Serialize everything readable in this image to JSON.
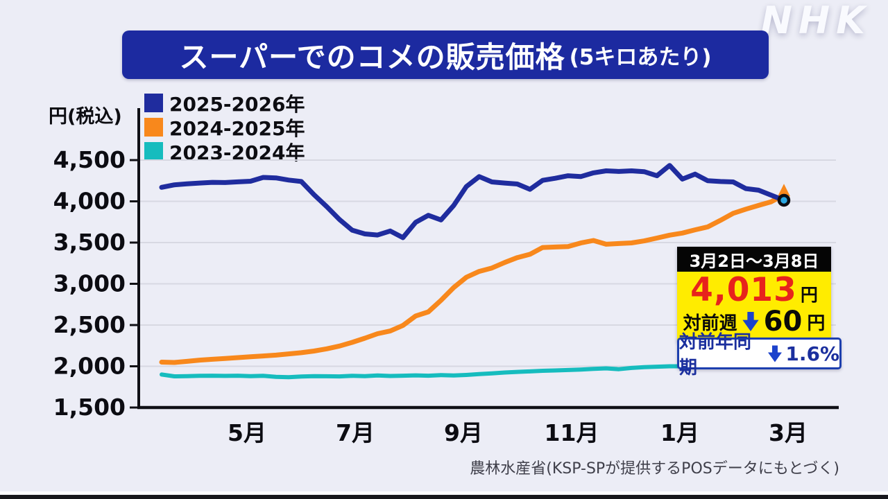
{
  "brand": {
    "logo": "NHK"
  },
  "title": {
    "main": "スーパーでのコメの販売価格",
    "unit": "(5キロあたり)"
  },
  "y_axis_unit": "円(税込)",
  "colors": {
    "title_bg": "#1c2aa0",
    "navy": "#1f2c9e",
    "orange": "#f8881c",
    "cyan": "#16bcbe",
    "price_red": "#e7231c",
    "callout_yellow": "#ffec00",
    "callout_header_bg": "#050505",
    "arrow_blue": "#1c42cc",
    "yoy_blue": "#1b2f9e",
    "marker_fill": "#2ba7e2"
  },
  "legend": [
    {
      "label": "2025-2026年",
      "color": "#1f2c9e"
    },
    {
      "label": "2024-2025年",
      "color": "#f8881c"
    },
    {
      "label": "2023-2024年",
      "color": "#16bcbe"
    }
  ],
  "callout": {
    "period": "3月2日～3月8日",
    "price": "4,013",
    "price_unit": "円",
    "wow_label": "対前週",
    "wow_value": "60",
    "wow_unit": "円",
    "yoy_label": "対前年同期",
    "yoy_value": "1.6%"
  },
  "source": "農林水産省(KSP-SPが提供するPOSデータにもとづく)",
  "chart_data": {
    "type": "line",
    "title": "スーパーでのコメの販売価格(5キロあたり)",
    "ylabel": "円(税込)",
    "ylim": [
      1500,
      4500
    ],
    "grid": true,
    "legend_position": "top-left",
    "y_tick_values": [
      1500,
      2000,
      2500,
      3000,
      3500,
      4000,
      4500
    ],
    "y_tick_labels": [
      "1,500",
      "2,000",
      "2,500",
      "3,000",
      "3,500",
      "4,000",
      "4,500"
    ],
    "x_tick_labels": [
      "5月",
      "7月",
      "9月",
      "11月",
      "1月",
      "3月"
    ],
    "x_unit": "weekly, late March through early March",
    "series": [
      {
        "name": "2023-2024年",
        "color": "#16bcbe",
        "values": [
          1900,
          1878,
          1880,
          1884,
          1886,
          1883,
          1886,
          1880,
          1884,
          1872,
          1868,
          1876,
          1880,
          1879,
          1877,
          1884,
          1880,
          1888,
          1882,
          1886,
          1890,
          1886,
          1893,
          1888,
          1895,
          1905,
          1914,
          1924,
          1932,
          1938,
          1945,
          1950,
          1955,
          1960,
          1968,
          1975,
          1965,
          1980,
          1990,
          1995,
          2000,
          2000,
          2005,
          2004,
          2010,
          2015,
          2040,
          2025,
          2048,
          2060
        ]
      },
      {
        "name": "2024-2025年",
        "color": "#f8881c",
        "end_arrow": true,
        "values": [
          2050,
          2046,
          2060,
          2075,
          2085,
          2095,
          2105,
          2115,
          2125,
          2135,
          2150,
          2165,
          2185,
          2212,
          2245,
          2290,
          2340,
          2395,
          2428,
          2495,
          2610,
          2660,
          2800,
          2955,
          3080,
          3150,
          3192,
          3258,
          3318,
          3358,
          3440,
          3446,
          3452,
          3495,
          3525,
          3480,
          3488,
          3496,
          3520,
          3555,
          3590,
          3615,
          3655,
          3690,
          3770,
          3855,
          3905,
          3950,
          3995,
          4078
        ]
      },
      {
        "name": "2025-2026年",
        "color": "#1f2c9e",
        "endpoint_marker": true,
        "endpoint_value": 4013,
        "values": [
          4170,
          4200,
          4212,
          4222,
          4230,
          4228,
          4236,
          4244,
          4290,
          4284,
          4258,
          4240,
          4080,
          3935,
          3780,
          3650,
          3605,
          3592,
          3640,
          3560,
          3745,
          3830,
          3775,
          3950,
          4180,
          4300,
          4235,
          4222,
          4210,
          4145,
          4255,
          4280,
          4310,
          4300,
          4345,
          4370,
          4362,
          4370,
          4360,
          4310,
          4435,
          4270,
          4330,
          4250,
          4240,
          4235,
          4155,
          4135,
          4075,
          4013
        ]
      }
    ]
  }
}
